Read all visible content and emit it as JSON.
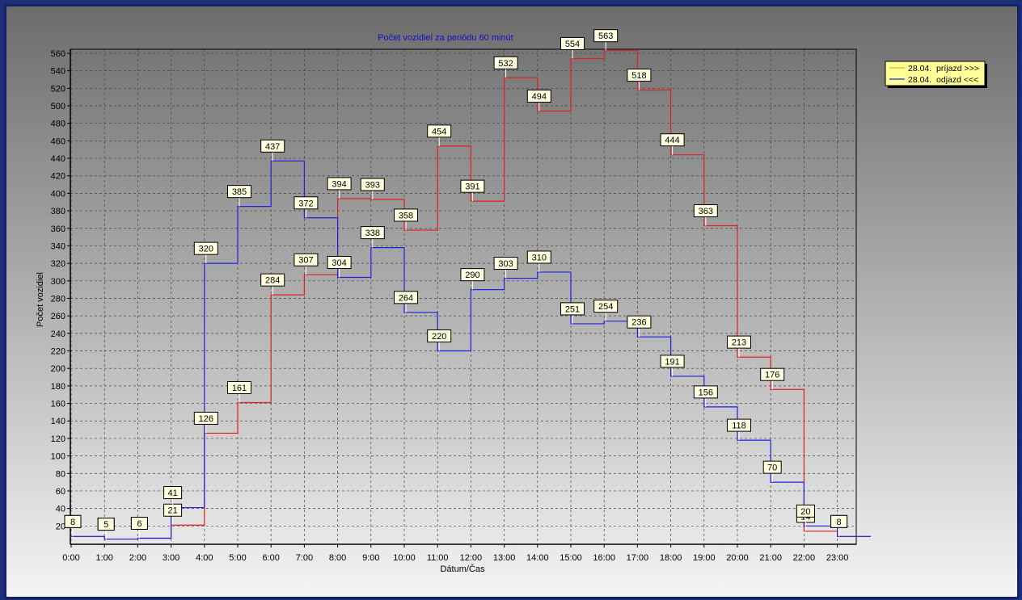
{
  "chart_data": {
    "type": "line",
    "title": "Počet vozidiel za periódu 60 minút",
    "xlabel": "Dátum/Čas",
    "ylabel": "Počet vozidiel",
    "categories": [
      "0:00",
      "1:00",
      "2:00",
      "3:00",
      "4:00",
      "5:00",
      "6:00",
      "7:00",
      "8:00",
      "9:00",
      "10:00",
      "11:00",
      "12:00",
      "13:00",
      "14:00",
      "15:00",
      "16:00",
      "17:00",
      "18:00",
      "19:00",
      "20:00",
      "21:00",
      "22:00",
      "23:00"
    ],
    "yticks": [
      20,
      40,
      60,
      80,
      100,
      120,
      140,
      160,
      180,
      200,
      220,
      240,
      260,
      280,
      300,
      320,
      340,
      360,
      380,
      400,
      420,
      440,
      460,
      480,
      500,
      520,
      540,
      560
    ],
    "ylim": [
      0,
      570
    ],
    "step": true,
    "grid": true,
    "legend_position": "top-right",
    "series": [
      {
        "name": "28.04.  príjazd >>>",
        "color": "#e02020",
        "values": [
          8,
          5,
          6,
          21,
          126,
          161,
          284,
          307,
          394,
          393,
          358,
          454,
          391,
          532,
          494,
          554,
          563,
          518,
          444,
          363,
          213,
          176,
          14,
          8
        ]
      },
      {
        "name": "28.04.  odjazd <<<",
        "color": "#2020e0",
        "values": [
          8,
          5,
          6,
          41,
          320,
          385,
          437,
          372,
          304,
          338,
          264,
          220,
          290,
          303,
          310,
          251,
          254,
          236,
          191,
          156,
          118,
          70,
          20,
          8
        ]
      }
    ],
    "colors": {
      "plot_top": "#6f6f6f",
      "plot_bottom": "#f2f2f2",
      "legend_bg": "#ffff99",
      "title": "#1010c0"
    }
  }
}
